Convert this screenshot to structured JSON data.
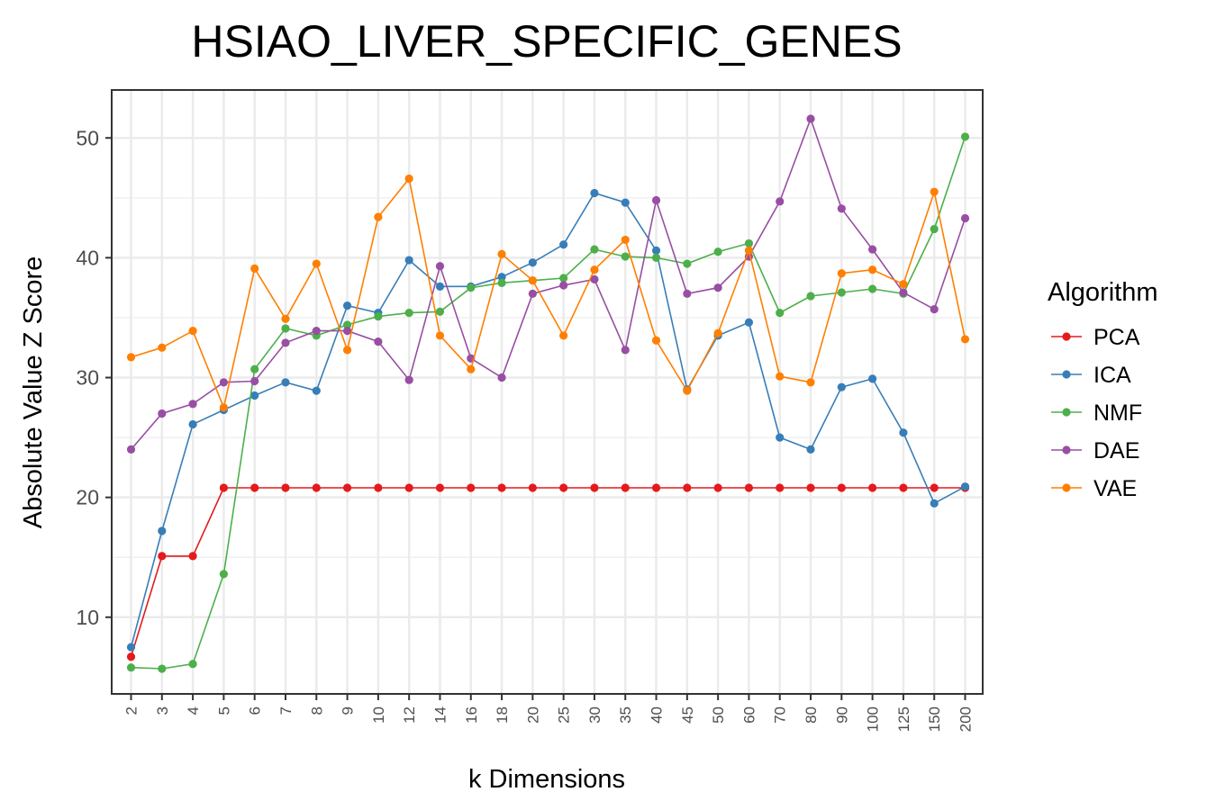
{
  "chart_data": {
    "type": "line",
    "title": "HSIAO_LIVER_SPECIFIC_GENES",
    "xlabel": "k Dimensions",
    "ylabel": "Absolute Value Z Score",
    "categories": [
      "2",
      "3",
      "4",
      "5",
      "6",
      "7",
      "8",
      "9",
      "10",
      "12",
      "14",
      "16",
      "18",
      "20",
      "25",
      "30",
      "35",
      "40",
      "45",
      "50",
      "60",
      "70",
      "80",
      "90",
      "100",
      "125",
      "150",
      "200"
    ],
    "yticks": [
      10,
      20,
      30,
      40,
      50
    ],
    "ylim": [
      3.6,
      54
    ],
    "grid": true,
    "legend": {
      "title": "Algorithm",
      "position": "right"
    },
    "series": [
      {
        "name": "PCA",
        "color": "#e41a1c",
        "values": [
          6.7,
          15.1,
          15.1,
          20.8,
          20.8,
          20.8,
          20.8,
          20.8,
          20.8,
          20.8,
          20.8,
          20.8,
          20.8,
          20.8,
          20.8,
          20.8,
          20.8,
          20.8,
          20.8,
          20.8,
          20.8,
          20.8,
          20.8,
          20.8,
          20.8,
          20.8,
          20.8,
          20.8
        ]
      },
      {
        "name": "ICA",
        "color": "#377eb8",
        "values": [
          7.5,
          17.2,
          26.1,
          27.3,
          28.5,
          29.6,
          28.9,
          36.0,
          35.4,
          39.8,
          37.6,
          37.6,
          38.4,
          39.6,
          41.1,
          45.4,
          44.6,
          40.6,
          29.0,
          33.5,
          34.6,
          25.0,
          24.0,
          29.2,
          29.9,
          25.4,
          19.5,
          20.9
        ]
      },
      {
        "name": "NMF",
        "color": "#4daf4a",
        "values": [
          5.8,
          5.7,
          6.1,
          13.6,
          30.7,
          34.1,
          33.5,
          34.4,
          35.1,
          35.4,
          35.5,
          37.5,
          37.9,
          38.1,
          38.3,
          40.7,
          40.1,
          40.0,
          39.5,
          40.5,
          41.2,
          35.4,
          36.8,
          37.1,
          37.4,
          37.0,
          42.4,
          50.1
        ]
      },
      {
        "name": "DAE",
        "color": "#984ea3",
        "values": [
          24.0,
          27.0,
          27.8,
          29.6,
          29.7,
          32.9,
          33.9,
          33.9,
          33.0,
          29.8,
          39.3,
          31.6,
          30.0,
          37.0,
          37.7,
          38.2,
          32.3,
          44.8,
          37.0,
          37.5,
          40.1,
          44.7,
          51.6,
          44.1,
          40.7,
          37.1,
          35.7,
          43.3
        ]
      },
      {
        "name": "VAE",
        "color": "#ff7f00",
        "values": [
          31.7,
          32.5,
          33.9,
          27.5,
          39.1,
          34.9,
          39.5,
          32.3,
          43.4,
          46.6,
          33.5,
          30.7,
          40.3,
          38.1,
          33.5,
          39.0,
          41.5,
          33.1,
          28.9,
          33.7,
          40.6,
          30.1,
          29.6,
          38.7,
          39.0,
          37.8,
          45.5,
          33.2
        ]
      }
    ]
  }
}
